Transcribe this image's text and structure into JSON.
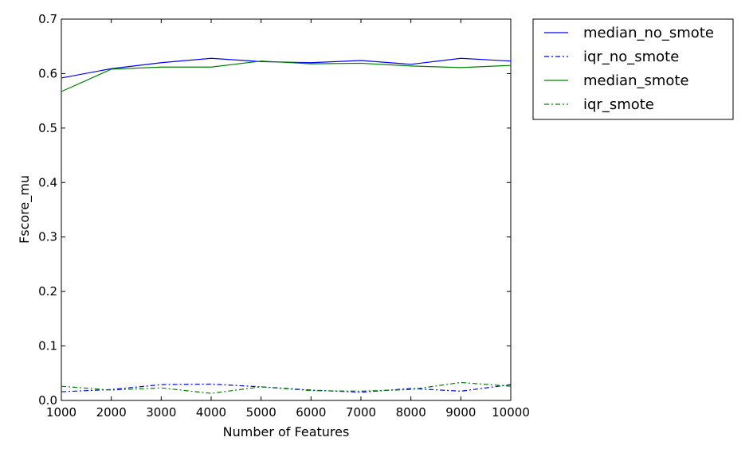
{
  "chart_data": {
    "type": "line",
    "title": "",
    "xlabel": "Number of Features",
    "ylabel": "Fscore_mu",
    "xlim": [
      1000,
      10000
    ],
    "ylim": [
      0,
      0.7
    ],
    "x": [
      1000,
      2000,
      3000,
      4000,
      5000,
      6000,
      7000,
      8000,
      9000,
      10000
    ],
    "x_ticks": [
      "1000",
      "2000",
      "3000",
      "4000",
      "5000",
      "6000",
      "7000",
      "8000",
      "9000",
      "10000"
    ],
    "y_ticks": [
      "0.0",
      "0.1",
      "0.2",
      "0.3",
      "0.4",
      "0.5",
      "0.6",
      "0.7"
    ],
    "grid": false,
    "legend_position": "outside-top-right",
    "series": [
      {
        "name": "median_no_smote",
        "color": "#0000ff",
        "style": "solid",
        "values": [
          0.592,
          0.609,
          0.62,
          0.628,
          0.622,
          0.62,
          0.624,
          0.617,
          0.628,
          0.623
        ]
      },
      {
        "name": "iqr_no_smote",
        "color": "#0000ff",
        "style": "dashdot",
        "values": [
          0.016,
          0.02,
          0.029,
          0.03,
          0.025,
          0.019,
          0.015,
          0.022,
          0.017,
          0.029
        ]
      },
      {
        "name": "median_smote",
        "color": "#008000",
        "style": "solid",
        "values": [
          0.567,
          0.608,
          0.612,
          0.612,
          0.623,
          0.618,
          0.619,
          0.614,
          0.611,
          0.615
        ]
      },
      {
        "name": "iqr_smote",
        "color": "#008000",
        "style": "dashdot",
        "values": [
          0.026,
          0.019,
          0.023,
          0.013,
          0.025,
          0.018,
          0.017,
          0.02,
          0.033,
          0.026
        ]
      }
    ]
  }
}
